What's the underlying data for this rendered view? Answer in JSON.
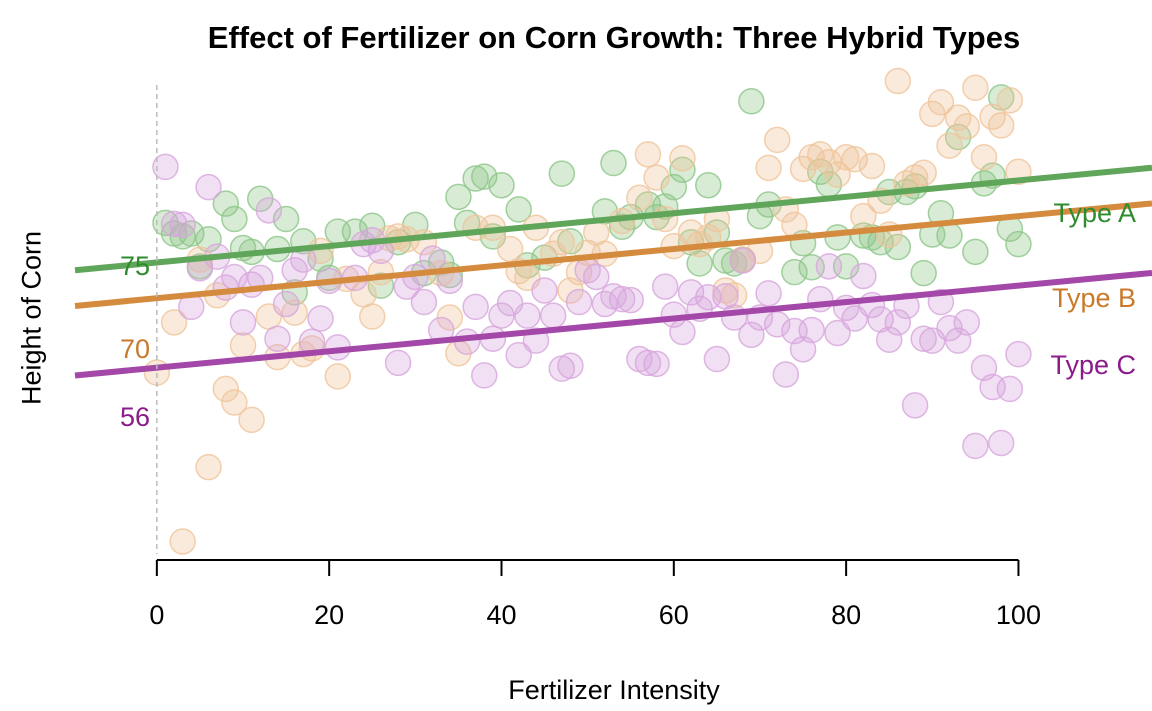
{
  "chart_data": {
    "type": "scatter",
    "title": "Effect of Fertilizer on Corn Growth: Three Hybrid Types",
    "xlabel": "Fertilizer Intensity",
    "ylabel": "Height of Corn",
    "xlim": [
      -9.5,
      115.5
    ],
    "ylim": [
      32,
      81
    ],
    "x_ticks": [
      0,
      20,
      40,
      60,
      80,
      100
    ],
    "x_tick_labels": [
      "0",
      "20",
      "40",
      "60",
      "80",
      "100"
    ],
    "y_ticks_shown": false,
    "grid": false,
    "reference_line": {
      "x": 0,
      "style": "dashed"
    },
    "annotations": [
      {
        "text": "75",
        "color": "#2e8b2e"
      },
      {
        "text": "70",
        "color": "#c87a2a"
      },
      {
        "text": "56",
        "color": "#8b1a8b"
      }
    ],
    "series": [
      {
        "name": "Type A",
        "color": "#5fa55a",
        "point_color": "#8cc687",
        "fit": {
          "intercept": 62.2,
          "slope": 0.085
        },
        "points": [
          [
            1,
            66.3
          ],
          [
            2,
            65.2
          ],
          [
            3,
            64.9
          ],
          [
            4,
            65.2
          ],
          [
            5,
            61.8
          ],
          [
            6,
            64.6
          ],
          [
            8,
            68.3
          ],
          [
            9,
            66.7
          ],
          [
            10,
            63.7
          ],
          [
            11,
            63.3
          ],
          [
            12,
            68.8
          ],
          [
            14,
            63.6
          ],
          [
            15,
            66.7
          ],
          [
            16,
            59.1
          ],
          [
            17,
            64.4
          ],
          [
            19,
            62.6
          ],
          [
            20,
            60.6
          ],
          [
            21,
            65.4
          ],
          [
            23,
            65.4
          ],
          [
            25,
            66.0
          ],
          [
            26,
            59.8
          ],
          [
            28,
            64.3
          ],
          [
            30,
            66.1
          ],
          [
            31,
            61.1
          ],
          [
            33,
            62.2
          ],
          [
            34,
            60.9
          ],
          [
            35,
            69.0
          ],
          [
            36,
            66.3
          ],
          [
            37,
            70.9
          ],
          [
            38,
            71.1
          ],
          [
            39,
            64.9
          ],
          [
            40,
            70.2
          ],
          [
            42,
            67.7
          ],
          [
            43,
            61.9
          ],
          [
            45,
            62.7
          ],
          [
            47,
            71.4
          ],
          [
            48,
            64.4
          ],
          [
            52,
            67.5
          ],
          [
            53,
            72.5
          ],
          [
            54,
            65.9
          ],
          [
            55,
            66.9
          ],
          [
            57,
            68.2
          ],
          [
            58,
            66.9
          ],
          [
            59,
            68.0
          ],
          [
            60,
            70.0
          ],
          [
            61,
            71.8
          ],
          [
            62,
            64.3
          ],
          [
            63,
            62.1
          ],
          [
            64,
            70.2
          ],
          [
            65,
            65.3
          ],
          [
            66,
            62.4
          ],
          [
            67,
            62.1
          ],
          [
            68,
            62.5
          ],
          [
            69,
            78.9
          ],
          [
            70,
            67.0
          ],
          [
            71,
            68.2
          ],
          [
            74,
            61.2
          ],
          [
            75,
            64.2
          ],
          [
            76,
            61.7
          ],
          [
            77,
            71.6
          ],
          [
            78,
            70.3
          ],
          [
            79,
            64.8
          ],
          [
            80,
            61.8
          ],
          [
            82,
            65.0
          ],
          [
            83,
            64.8
          ],
          [
            84,
            64.3
          ],
          [
            85,
            69.5
          ],
          [
            86,
            63.8
          ],
          [
            87,
            69.5
          ],
          [
            88,
            70.1
          ],
          [
            89,
            61.1
          ],
          [
            90,
            65.1
          ],
          [
            91,
            67.3
          ],
          [
            92,
            65.0
          ],
          [
            93,
            75.2
          ],
          [
            95,
            63.3
          ],
          [
            96,
            70.4
          ],
          [
            97,
            71.2
          ],
          [
            98,
            79.3
          ],
          [
            99,
            65.7
          ],
          [
            100,
            64.1
          ]
        ]
      },
      {
        "name": "Type B",
        "color": "#d48b3d",
        "point_color": "#efc49a",
        "fit": {
          "intercept": 58.5,
          "slope": 0.085
        },
        "points": [
          [
            0,
            50.8
          ],
          [
            2,
            56.0
          ],
          [
            3,
            33.3
          ],
          [
            5,
            62.5
          ],
          [
            6,
            41.0
          ],
          [
            7,
            58.8
          ],
          [
            8,
            49.1
          ],
          [
            9,
            47.7
          ],
          [
            10,
            53.6
          ],
          [
            11,
            45.9
          ],
          [
            13,
            56.6
          ],
          [
            14,
            52.4
          ],
          [
            16,
            57.0
          ],
          [
            17,
            52.7
          ],
          [
            18,
            53.3
          ],
          [
            19,
            63.4
          ],
          [
            21,
            50.4
          ],
          [
            22,
            60.5
          ],
          [
            24,
            58.9
          ],
          [
            25,
            56.6
          ],
          [
            26,
            61.2
          ],
          [
            27,
            64.7
          ],
          [
            28,
            64.9
          ],
          [
            29,
            64.6
          ],
          [
            31,
            64.3
          ],
          [
            33,
            61.1
          ],
          [
            34,
            56.5
          ],
          [
            35,
            52.8
          ],
          [
            37,
            65.8
          ],
          [
            39,
            65.8
          ],
          [
            41,
            63.6
          ],
          [
            42,
            61.3
          ],
          [
            43,
            60.6
          ],
          [
            44,
            65.8
          ],
          [
            46,
            63.1
          ],
          [
            47,
            64.3
          ],
          [
            48,
            59.3
          ],
          [
            49,
            61.2
          ],
          [
            50,
            63.2
          ],
          [
            51,
            65.3
          ],
          [
            52,
            63.1
          ],
          [
            54,
            66.5
          ],
          [
            56,
            68.9
          ],
          [
            57,
            73.4
          ],
          [
            58,
            71.0
          ],
          [
            59,
            66.7
          ],
          [
            60,
            63.9
          ],
          [
            61,
            73.0
          ],
          [
            62,
            65.3
          ],
          [
            63,
            64.1
          ],
          [
            64,
            64.8
          ],
          [
            65,
            66.7
          ],
          [
            66,
            59.3
          ],
          [
            67,
            58.8
          ],
          [
            68,
            62.5
          ],
          [
            70,
            63.4
          ],
          [
            71,
            72.0
          ],
          [
            72,
            74.9
          ],
          [
            73,
            67.7
          ],
          [
            74,
            66.1
          ],
          [
            75,
            71.9
          ],
          [
            76,
            73.1
          ],
          [
            77,
            73.4
          ],
          [
            78,
            72.6
          ],
          [
            79,
            71.3
          ],
          [
            80,
            73.1
          ],
          [
            81,
            72.9
          ],
          [
            82,
            67.0
          ],
          [
            83,
            72.2
          ],
          [
            84,
            68.6
          ],
          [
            85,
            65.1
          ],
          [
            86,
            81.0
          ],
          [
            87,
            70.4
          ],
          [
            88,
            71.0
          ],
          [
            89,
            71.5
          ],
          [
            90,
            77.6
          ],
          [
            91,
            78.8
          ],
          [
            92,
            74.3
          ],
          [
            93,
            77.2
          ],
          [
            94,
            76.3
          ],
          [
            95,
            80.3
          ],
          [
            96,
            73.1
          ],
          [
            97,
            77.3
          ],
          [
            98,
            76.4
          ],
          [
            99,
            79.0
          ],
          [
            100,
            71.6
          ]
        ]
      },
      {
        "name": "Type C",
        "color": "#a347a8",
        "point_color": "#d7a5dc",
        "fit": {
          "intercept": 51.3,
          "slope": 0.085
        },
        "points": [
          [
            1,
            72.1
          ],
          [
            2,
            66.2
          ],
          [
            3,
            66.1
          ],
          [
            4,
            57.6
          ],
          [
            5,
            61.6
          ],
          [
            6,
            70.0
          ],
          [
            7,
            62.8
          ],
          [
            8,
            59.6
          ],
          [
            9,
            60.7
          ],
          [
            10,
            56.0
          ],
          [
            11,
            59.9
          ],
          [
            12,
            60.6
          ],
          [
            13,
            67.6
          ],
          [
            14,
            54.3
          ],
          [
            15,
            57.9
          ],
          [
            16,
            61.4
          ],
          [
            17,
            62.5
          ],
          [
            18,
            54.0
          ],
          [
            19,
            56.4
          ],
          [
            20,
            60.3
          ],
          [
            21,
            53.4
          ],
          [
            23,
            60.6
          ],
          [
            24,
            64.1
          ],
          [
            25,
            64.5
          ],
          [
            26,
            63.4
          ],
          [
            28,
            51.8
          ],
          [
            29,
            59.7
          ],
          [
            30,
            60.7
          ],
          [
            31,
            58.1
          ],
          [
            32,
            62.6
          ],
          [
            33,
            55.2
          ],
          [
            34,
            60.3
          ],
          [
            36,
            54.0
          ],
          [
            37,
            57.6
          ],
          [
            38,
            50.5
          ],
          [
            39,
            54.3
          ],
          [
            40,
            56.7
          ],
          [
            41,
            58.0
          ],
          [
            42,
            52.6
          ],
          [
            43,
            56.7
          ],
          [
            44,
            54.1
          ],
          [
            45,
            59.3
          ],
          [
            46,
            56.7
          ],
          [
            47,
            51.2
          ],
          [
            48,
            51.5
          ],
          [
            49,
            58.1
          ],
          [
            50,
            61.4
          ],
          [
            51,
            60.7
          ],
          [
            52,
            57.9
          ],
          [
            53,
            58.7
          ],
          [
            54,
            58.4
          ],
          [
            55,
            58.3
          ],
          [
            56,
            52.2
          ],
          [
            57,
            51.8
          ],
          [
            58,
            51.7
          ],
          [
            59,
            59.7
          ],
          [
            60,
            56.8
          ],
          [
            61,
            55.0
          ],
          [
            62,
            59.1
          ],
          [
            63,
            57.4
          ],
          [
            64,
            58.6
          ],
          [
            65,
            52.2
          ],
          [
            66,
            58.7
          ],
          [
            67,
            56.5
          ],
          [
            68,
            62.4
          ],
          [
            69,
            54.7
          ],
          [
            70,
            56.5
          ],
          [
            71,
            59.0
          ],
          [
            72,
            55.8
          ],
          [
            73,
            50.6
          ],
          [
            74,
            55.1
          ],
          [
            75,
            53.2
          ],
          [
            76,
            55.2
          ],
          [
            77,
            58.4
          ],
          [
            78,
            61.8
          ],
          [
            79,
            54.9
          ],
          [
            80,
            57.5
          ],
          [
            81,
            56.4
          ],
          [
            82,
            60.8
          ],
          [
            83,
            57.8
          ],
          [
            84,
            56.3
          ],
          [
            85,
            54.2
          ],
          [
            86,
            56.0
          ],
          [
            87,
            57.7
          ],
          [
            88,
            47.4
          ],
          [
            89,
            54.3
          ],
          [
            90,
            54.1
          ],
          [
            91,
            58.1
          ],
          [
            92,
            55.4
          ],
          [
            93,
            54.1
          ],
          [
            94,
            56.0
          ],
          [
            95,
            43.2
          ],
          [
            96,
            51.3
          ],
          [
            97,
            49.3
          ],
          [
            98,
            43.5
          ],
          [
            99,
            49.1
          ],
          [
            100,
            52.7
          ]
        ]
      }
    ]
  }
}
